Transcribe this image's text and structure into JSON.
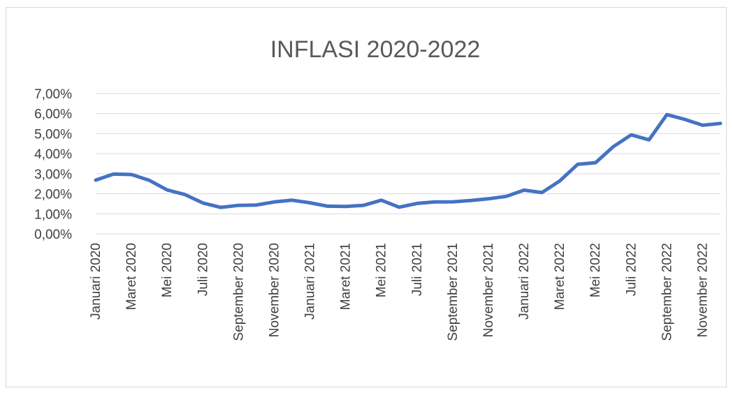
{
  "chart_data": {
    "type": "line",
    "title": "INFLASI 2020-2022",
    "xlabel": "",
    "ylabel": "",
    "ylim": [
      0,
      7
    ],
    "grid": true,
    "y_ticks": [
      "0,00%",
      "1,00%",
      "2,00%",
      "3,00%",
      "4,00%",
      "5,00%",
      "6,00%",
      "7,00%"
    ],
    "x_tick_labels": [
      "Januari 2020",
      "Maret 2020",
      "Mei 2020",
      "Juli 2020",
      "September 2020",
      "November 2020",
      "Januari 2021",
      "Maret 2021",
      "Mei 2021",
      "Juli 2021",
      "September 2021",
      "November 2021",
      "Januari 2022",
      "Maret 2022",
      "Mei 2022",
      "Juli 2022",
      "September 2022",
      "November 2022"
    ],
    "series": [
      {
        "color": "#4472c4",
        "values": [
          2.68,
          2.98,
          2.96,
          2.67,
          2.19,
          1.96,
          1.54,
          1.32,
          1.42,
          1.44,
          1.59,
          1.68,
          1.55,
          1.38,
          1.37,
          1.42,
          1.68,
          1.33,
          1.52,
          1.59,
          1.6,
          1.66,
          1.75,
          1.87,
          2.18,
          2.06,
          2.64,
          3.47,
          3.55,
          4.35,
          4.94,
          4.69,
          5.95,
          5.71,
          5.42,
          5.51
        ]
      }
    ]
  }
}
